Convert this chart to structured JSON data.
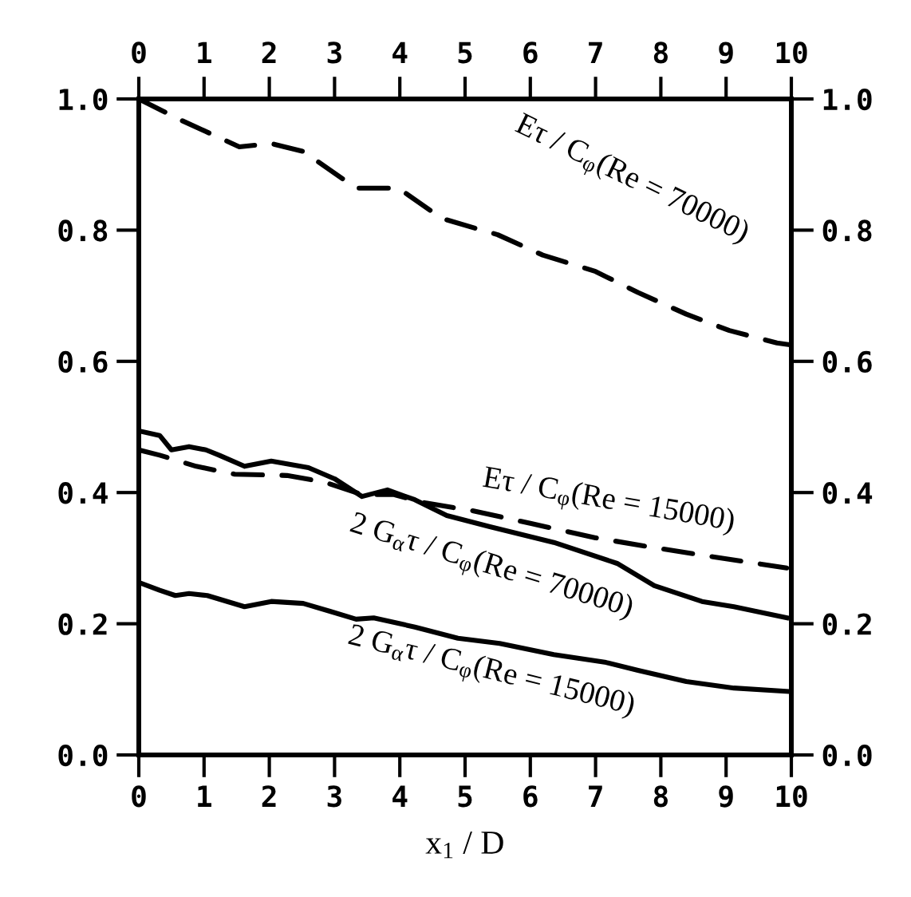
{
  "chart_data": {
    "type": "line",
    "xlabel": "x$_{1}$ / D",
    "xlim": [
      0,
      10
    ],
    "ylim": [
      0,
      1.0
    ],
    "xticks": [
      0,
      1,
      2,
      3,
      4,
      5,
      6,
      7,
      8,
      9,
      10
    ],
    "yticks": [
      {
        "value": 0,
        "label": "0.0"
      },
      {
        "value": 0.2,
        "label": "0.2"
      },
      {
        "value": 0.4,
        "label": "0.4"
      },
      {
        "value": 0.6,
        "label": "0.6"
      },
      {
        "value": 0.8,
        "label": "0.8"
      },
      {
        "value": 1.0,
        "label": "1.0"
      }
    ],
    "x2lim": [
      0,
      10
    ],
    "x2ticks": [
      0,
      1,
      2,
      3,
      4,
      5,
      6,
      7,
      8,
      9,
      10
    ],
    "y2lim": [
      0,
      1.0
    ],
    "y2ticks": [
      {
        "value": 0,
        "label": "0.0"
      },
      {
        "value": 0.2,
        "label": "0.2"
      },
      {
        "value": 0.4,
        "label": "0.4"
      },
      {
        "value": 0.6,
        "label": "0.6"
      },
      {
        "value": 0.8,
        "label": "0.8"
      },
      {
        "value": 1.0,
        "label": "1.0"
      }
    ],
    "grid": false,
    "legend": false,
    "marker": "none",
    "series": [
      {
        "color": "#000000",
        "line_style": "dashed",
        "x": [
          0,
          0.64,
          1.54,
          2.03,
          2.52,
          3.33,
          3.98,
          4.64,
          5.5,
          6.19,
          7.0,
          7.65,
          8.39,
          9.05,
          9.78,
          10
        ],
        "values": [
          1.0,
          0.968,
          0.927,
          0.932,
          0.92,
          0.864,
          0.864,
          0.818,
          0.793,
          0.762,
          0.737,
          0.705,
          0.672,
          0.647,
          0.628,
          0.625
        ]
      },
      {
        "color": "#000000",
        "line_style": "dashed",
        "x": [
          0,
          0.32,
          0.88,
          1.47,
          2.27,
          2.84,
          3.42,
          3.9,
          4.4,
          5.13,
          6.0,
          7.0,
          7.9,
          8.8,
          9.93
        ],
        "values": [
          0.465,
          0.457,
          0.44,
          0.428,
          0.426,
          0.416,
          0.397,
          0.397,
          0.384,
          0.372,
          0.353,
          0.331,
          0.316,
          0.302,
          0.285
        ]
      },
      {
        "color": "#000000",
        "line_style": "solid",
        "x": [
          0,
          0.32,
          0.5,
          0.77,
          1.03,
          1.23,
          1.62,
          2.03,
          2.6,
          3.0,
          3.42,
          3.81,
          4.23,
          4.72,
          5.38,
          6.36,
          7.33,
          7.9,
          8.63,
          9.12,
          9.93
        ],
        "values": [
          0.494,
          0.487,
          0.465,
          0.47,
          0.465,
          0.457,
          0.44,
          0.448,
          0.438,
          0.421,
          0.394,
          0.404,
          0.389,
          0.365,
          0.348,
          0.324,
          0.292,
          0.258,
          0.234,
          0.226,
          0.209
        ]
      },
      {
        "color": "#000000",
        "line_style": "solid",
        "x": [
          0,
          0.32,
          0.56,
          0.77,
          1.05,
          1.62,
          2.03,
          2.52,
          2.93,
          3.33,
          3.6,
          4.23,
          4.89,
          5.53,
          6.36,
          7.16,
          7.65,
          8.39,
          9.12,
          9.93
        ],
        "values": [
          0.263,
          0.251,
          0.243,
          0.246,
          0.243,
          0.226,
          0.234,
          0.231,
          0.219,
          0.207,
          0.209,
          0.195,
          0.178,
          0.17,
          0.153,
          0.141,
          0.129,
          0.112,
          0.102,
          0.097
        ]
      }
    ],
    "annotations": [
      "Eτ / C$_{φ}$(Re = 70000)",
      "Eτ / C$_{φ}$(Re = 15000)",
      "2 G$_{α}$τ / C$_{φ}$(Re = 70000)",
      "2 G$_{α}$τ / C$_{φ}$(Re = 15000)"
    ]
  }
}
